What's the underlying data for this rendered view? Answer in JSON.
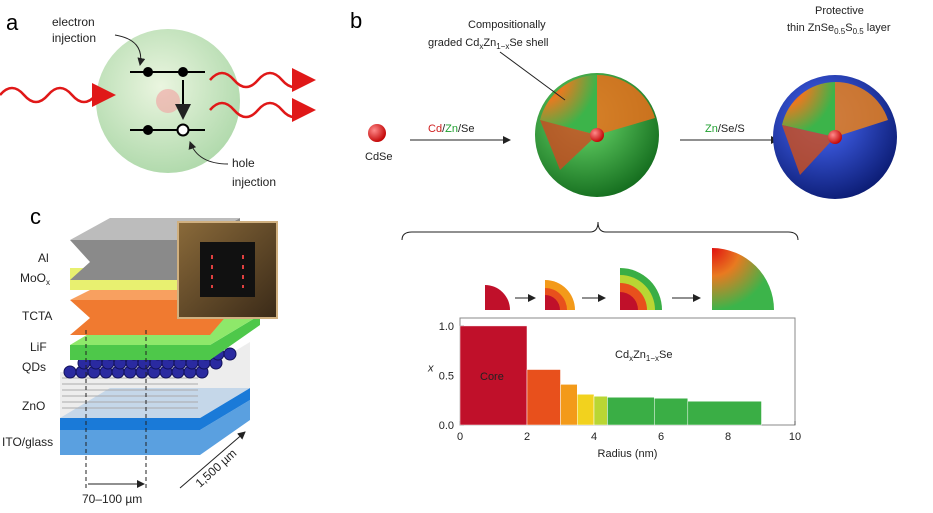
{
  "panels": {
    "a": {
      "label": "a",
      "electron_injection": [
        "electron",
        "injection"
      ],
      "hole_injection": [
        "hole",
        "injection"
      ]
    },
    "b": {
      "label": "b",
      "shell_label": {
        "line1": "Compositionally",
        "line2": [
          "graded Cd",
          "x",
          "Zn",
          "1−x",
          "Se shell"
        ]
      },
      "core_label": "CdSe",
      "step1": [
        "Cd",
        "/",
        "Zn",
        "/Se"
      ],
      "layer_label": {
        "line1": "Protective",
        "line2": [
          "thin ZnSe",
          "0.5",
          "S",
          "0.5",
          " layer"
        ]
      },
      "step2": [
        "Zn",
        "/Se/S"
      ]
    },
    "c": {
      "label": "c",
      "layers": [
        "Al",
        "MoO",
        "x",
        "TCTA",
        "LiF",
        "QDs",
        "ZnO",
        "ITO/glass"
      ],
      "width": "70–100 µm",
      "length": "1,500 µm"
    }
  },
  "chart_data": {
    "type": "histogram",
    "bins": [
      0,
      2,
      3,
      3.5,
      4,
      4.4,
      5.8,
      6.8,
      9
    ],
    "values": [
      1.0,
      0.56,
      0.41,
      0.31,
      0.29,
      0.28,
      0.27,
      0.24
    ],
    "colors": [
      "#c0102a",
      "#e8501c",
      "#f39a1a",
      "#f2d21e",
      "#b9d633",
      "#3aae45",
      "#3aae45",
      "#3aae45"
    ],
    "xlim": [
      0,
      10
    ],
    "ylim": [
      0,
      1.08
    ],
    "xticks": [
      0,
      2,
      4,
      6,
      8,
      10
    ],
    "yticks": [
      {
        "value": 0,
        "label": "0.0"
      },
      0.5,
      {
        "value": 1,
        "label": "1.0"
      }
    ],
    "xlabel": "Radius (nm)",
    "ylabel": "x",
    "annotations": {
      "core": "Core",
      "formula": [
        "Cd",
        "x",
        "Zn",
        "1−x",
        "Se"
      ]
    },
    "grid": false
  }
}
